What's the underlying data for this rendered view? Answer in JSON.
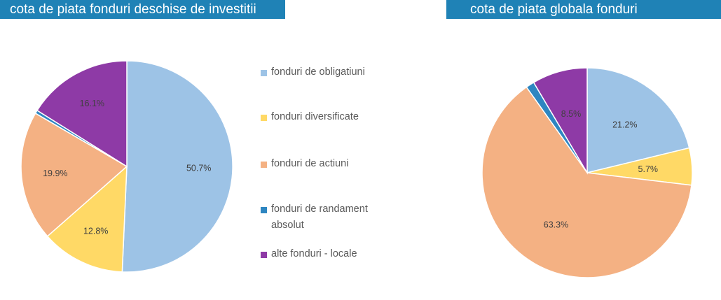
{
  "colors": {
    "title_bar": "#1f82b6",
    "fonduri_obligatiuni": "#9dc3e6",
    "fonduri_diversificate": "#ffd966",
    "fonduri_actiuni": "#f4b183",
    "fonduri_randament_absolut": "#2e86c1",
    "alte_fonduri_locale": "#8e3aa6"
  },
  "chart_data": [
    {
      "type": "pie",
      "title": "cota de piata fonduri deschise de investitii",
      "slices": [
        {
          "category": "fonduri de obligatiuni",
          "value": 50.7,
          "label": "50.7%",
          "color": "#9dc3e6"
        },
        {
          "category": "fonduri diversificate",
          "value": 12.8,
          "label": "12.8%",
          "color": "#ffd966"
        },
        {
          "category": "fonduri de actiuni",
          "value": 19.9,
          "label": "19.9%",
          "color": "#f4b183"
        },
        {
          "category": "fonduri de randament absolut",
          "value": 0.5,
          "label": "",
          "color": "#2e86c1"
        },
        {
          "category": "alte fonduri - locale",
          "value": 16.1,
          "label": "16.1%",
          "color": "#8e3aa6"
        }
      ],
      "legend": {
        "placement": "right",
        "entries": [
          "fonduri de obligatiuni",
          "fonduri diversificate",
          "fonduri de actiuni",
          "fonduri de randament absolut",
          "alte fonduri - locale"
        ]
      }
    },
    {
      "type": "pie",
      "title": "cota de piata globala fonduri",
      "slices": [
        {
          "category": "fonduri de obligatiuni",
          "value": 21.2,
          "label": "21.2%",
          "color": "#9dc3e6"
        },
        {
          "category": "fonduri diversificate",
          "value": 5.7,
          "label": "5.7%",
          "color": "#ffd966"
        },
        {
          "category": "fonduri de actiuni",
          "value": 63.3,
          "label": "63.3%",
          "color": "#f4b183"
        },
        {
          "category": "fonduri de randament absolut",
          "value": 1.3,
          "label": "",
          "color": "#2e86c1"
        },
        {
          "category": "alte fonduri - locale",
          "value": 8.5,
          "label": "8.5%",
          "color": "#8e3aa6"
        }
      ]
    }
  ],
  "legend_items": [
    {
      "text": "fonduri de obligatiuni",
      "color": "#9dc3e6"
    },
    {
      "text": "fonduri diversificate",
      "color": "#ffd966"
    },
    {
      "text": "fonduri de actiuni",
      "color": "#f4b183"
    },
    {
      "text": "fonduri de randament absolut",
      "color": "#2e86c1"
    },
    {
      "text": "alte fonduri - locale",
      "color": "#8e3aa6"
    }
  ]
}
